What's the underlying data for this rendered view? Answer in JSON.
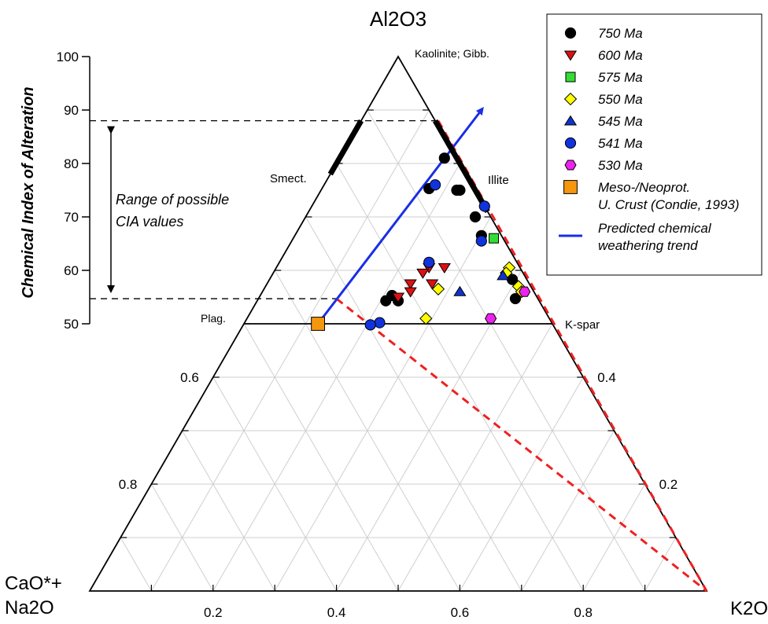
{
  "chart_data": {
    "type": "scatter",
    "subtype": "ternary",
    "title": "",
    "vertices": {
      "top": "Al2O3",
      "left_line1": "CaO*+",
      "left_line2": "Na2O",
      "right": "K2O"
    },
    "cia_axis": {
      "label": "Chemical Index of Alteration",
      "range": [
        0,
        100
      ],
      "ticks": [
        "50",
        "60",
        "70",
        "80",
        "90",
        "100"
      ]
    },
    "left_edge_ticks": [
      "0.6",
      "0.8"
    ],
    "right_edge_ticks": [
      "0.4",
      "0.2"
    ],
    "bottom_ticks": [
      "0.2",
      "0.4",
      "0.6",
      "0.8"
    ],
    "grid": true,
    "annotations": {
      "kaolinite": "Kaolinite; Gibb.",
      "smectite": "Smect.",
      "illite": "Illite",
      "plagioclase": "Plag.",
      "kspar": "K-spar",
      "range_line1": "Range of possible",
      "range_line2": "CIA values"
    },
    "cia_range": [
      54.7,
      88
    ],
    "legend_position": "top-right",
    "series": [
      {
        "name": "750 Ma",
        "marker": "circle",
        "color": "#000000",
        "points": [
          [
            0.575,
            81
          ],
          [
            0.55,
            75.3
          ],
          [
            0.595,
            75
          ],
          [
            0.6,
            75
          ],
          [
            0.625,
            70
          ],
          [
            0.635,
            66.5
          ],
          [
            0.685,
            58.3
          ],
          [
            0.69,
            54.7
          ],
          [
            0.49,
            55.3
          ],
          [
            0.48,
            54.3
          ],
          [
            0.5,
            54.3
          ]
        ]
      },
      {
        "name": "600 Ma",
        "marker": "triangle-down",
        "color": "#dd1111",
        "points": [
          [
            0.55,
            60.5
          ],
          [
            0.54,
            59.5
          ],
          [
            0.52,
            57.5
          ],
          [
            0.52,
            56
          ],
          [
            0.5,
            55
          ],
          [
            0.555,
            57.5
          ],
          [
            0.575,
            60.5
          ]
        ]
      },
      {
        "name": "575 Ma",
        "marker": "square",
        "color": "#33dd33",
        "points": [
          [
            0.655,
            66
          ]
        ]
      },
      {
        "name": "550 Ma",
        "marker": "diamond",
        "color": "#ffff00",
        "points": [
          [
            0.565,
            56.5
          ],
          [
            0.545,
            51
          ],
          [
            0.68,
            60.5
          ],
          [
            0.675,
            59.5
          ],
          [
            0.695,
            57
          ],
          [
            0.7,
            56
          ]
        ]
      },
      {
        "name": "545 Ma",
        "marker": "triangle-up",
        "color": "#1133cc",
        "points": [
          [
            0.6,
            56
          ],
          [
            0.67,
            59
          ]
        ]
      },
      {
        "name": "541 Ma",
        "marker": "circle",
        "color": "#1133dd",
        "points": [
          [
            0.56,
            76
          ],
          [
            0.55,
            61.5
          ],
          [
            0.64,
            72
          ],
          [
            0.635,
            65.5
          ],
          [
            0.47,
            50.2
          ],
          [
            0.455,
            49.8
          ]
        ]
      },
      {
        "name": "530 Ma",
        "marker": "hexagon",
        "color": "#ee22ee",
        "points": [
          [
            0.65,
            51
          ],
          [
            0.705,
            56
          ]
        ]
      },
      {
        "name": "Meso-/Neoprot. U. Crust (Condie, 1993)",
        "marker": "square-large",
        "color": "#f5960f",
        "points": [
          [
            0.37,
            50
          ]
        ]
      }
    ],
    "legend": [
      {
        "name": "750 Ma",
        "lines": [
          "750 Ma"
        ]
      },
      {
        "name": "600 Ma",
        "lines": [
          "600 Ma"
        ]
      },
      {
        "name": "575 Ma",
        "lines": [
          "575 Ma"
        ]
      },
      {
        "name": "550 Ma",
        "lines": [
          "550 Ma"
        ]
      },
      {
        "name": "545 Ma",
        "lines": [
          "545 Ma"
        ]
      },
      {
        "name": "541 Ma",
        "lines": [
          "541 Ma"
        ]
      },
      {
        "name": "530 Ma",
        "lines": [
          "530 Ma"
        ]
      },
      {
        "name": "Meso-/Neoprot. U. Crust (Condie, 1993)",
        "lines": [
          "Meso-/Neoprot.",
          "U. Crust (Condie, 1993)"
        ]
      },
      {
        "name": "Predicted chemical weathering trend",
        "lines": [
          "Predicted chemical",
          "weathering trend"
        ]
      }
    ],
    "trend_line": {
      "name": "Predicted chemical weathering trend",
      "color": "#1a2ee6",
      "from": [
        0.37,
        50
      ],
      "to": [
        0.635,
        90
      ]
    },
    "reference_lines": {
      "color": "#ee2222",
      "dashed_right": [
        [
          0.565,
          88
        ],
        [
          1.0,
          0
        ]
      ],
      "dashed_lower": [
        [
          0.4,
          54.7
        ],
        [
          1.0,
          0
        ]
      ]
    }
  }
}
